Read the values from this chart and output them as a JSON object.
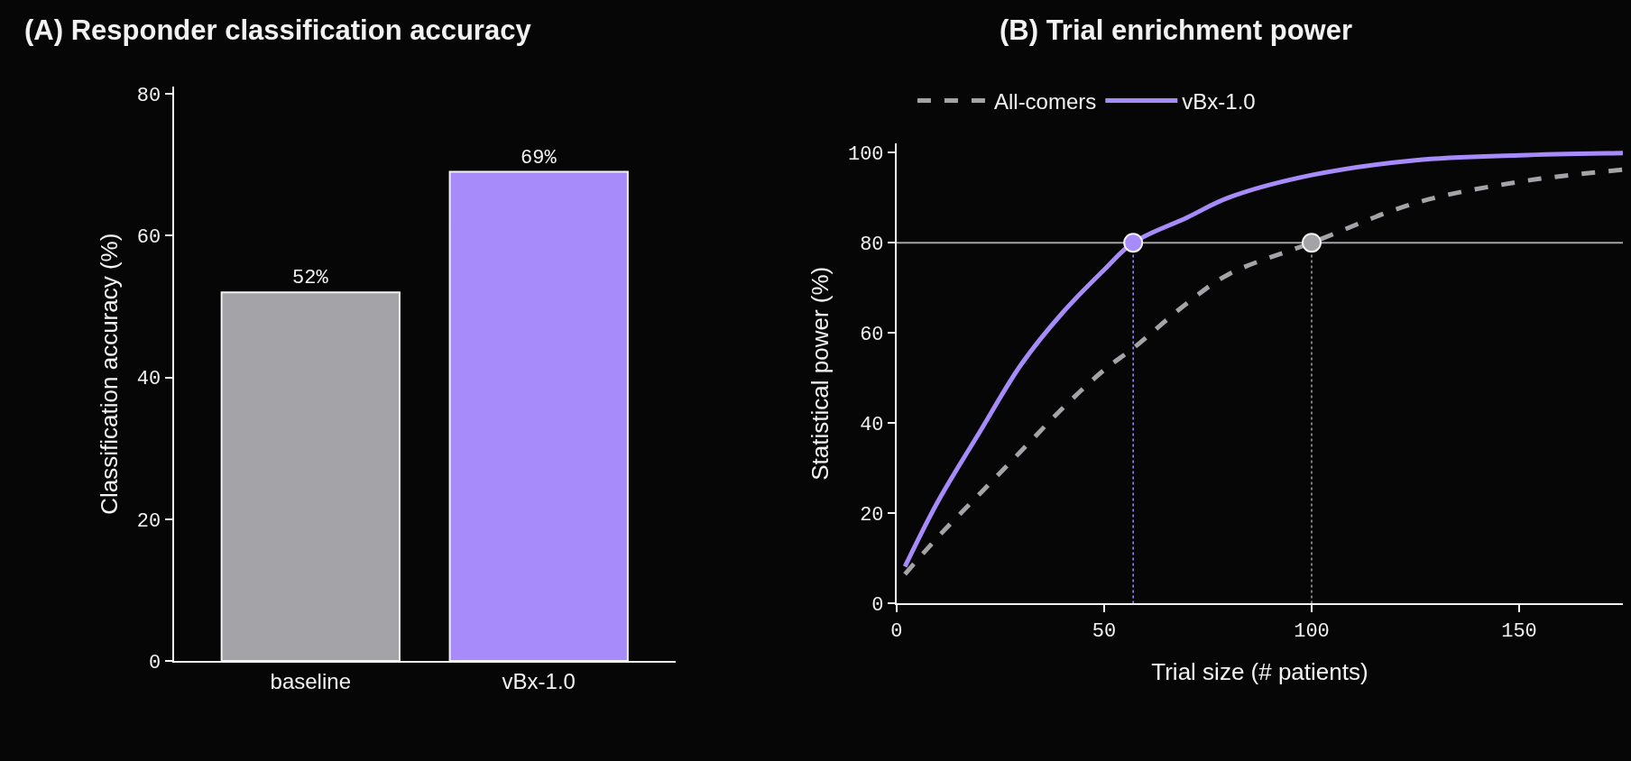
{
  "chart_data": [
    {
      "type": "bar",
      "title": "(A) Responder classification accuracy",
      "ylabel": "Classification accuracy (%)",
      "categories": [
        "baseline",
        "vBx-1.0"
      ],
      "values": [
        52,
        69
      ],
      "colors": [
        "#a3a3a8",
        "#a78bfa"
      ],
      "value_labels": [
        "52%",
        "69%"
      ],
      "ylim": [
        0,
        81
      ],
      "yticks": [
        0,
        20,
        40,
        60,
        80
      ],
      "grid": false,
      "legend": false
    },
    {
      "type": "line",
      "title": "(B) Trial enrichment power",
      "xlabel": "Trial size (# patients)",
      "ylabel": "Statistical power (%)",
      "xlim": [
        0,
        175
      ],
      "xticks": [
        0,
        50,
        100,
        150
      ],
      "ylim": [
        0,
        102
      ],
      "yticks": [
        0,
        20,
        40,
        60,
        80,
        100
      ],
      "grid": false,
      "legend": "top",
      "marker": "none",
      "series": [
        {
          "name": "All-comers",
          "color": "#a3a3a8",
          "line_style": "dashed",
          "x": [
            2,
            10,
            20,
            30,
            40,
            50,
            57,
            70,
            80,
            100,
            125,
            150,
            175
          ],
          "values": [
            6.5,
            14.8,
            24.3,
            33.8,
            43.3,
            51.8,
            56.6,
            66.6,
            73,
            80,
            88.8,
            93.5,
            96.2
          ]
        },
        {
          "name": "vBx-1.0",
          "color": "#a78bfa",
          "line_style": "solid",
          "x": [
            2,
            10,
            20,
            30,
            40,
            50,
            57,
            70,
            80,
            100,
            125,
            150,
            175
          ],
          "values": [
            8.2,
            22.7,
            38,
            53,
            64.5,
            74,
            80,
            85.6,
            90,
            95,
            98.3,
            99.4,
            99.9
          ]
        },
        {
          "type": "line",
          "color": "#a78bfa",
          "line_style": "dotted",
          "x": [
            57,
            57
          ],
          "values": [
            0,
            80
          ]
        },
        {
          "type": "line",
          "color": "#a3a3a8",
          "line_style": "dotted",
          "x": [
            100,
            100
          ],
          "values": [
            0,
            80
          ]
        },
        {
          "type": "scatter",
          "color": "#a78bfa",
          "marker": "circle",
          "x": [
            57
          ],
          "values": [
            80
          ]
        },
        {
          "type": "scatter",
          "color": "#a3a3a8",
          "marker": "circle",
          "x": [
            100
          ],
          "values": [
            80
          ]
        }
      ],
      "ref_lines": [
        {
          "axis": "y",
          "value": 80,
          "color": "#a3a3a8",
          "line_style": "solid"
        }
      ]
    }
  ]
}
